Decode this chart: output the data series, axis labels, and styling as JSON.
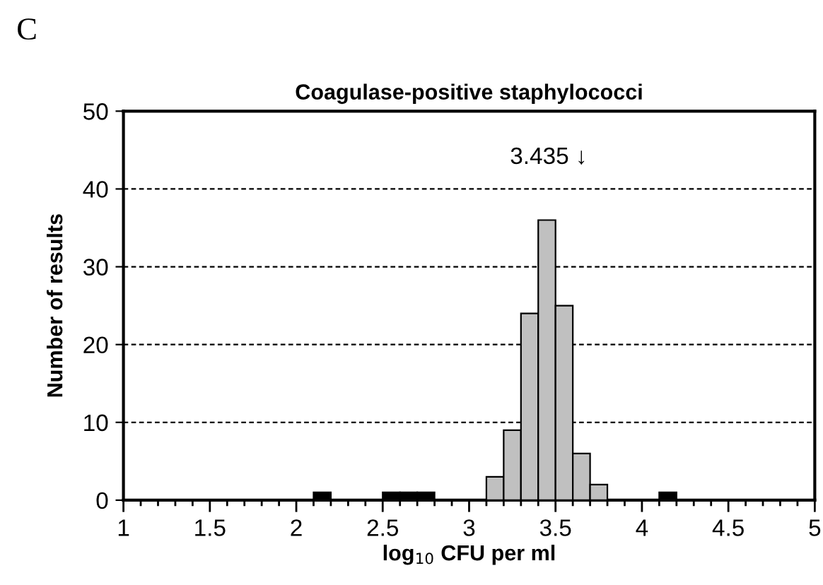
{
  "chart_data": {
    "type": "histogram",
    "title": "Coagulase-positive staphylococci",
    "xlabel": "log$_{10}$ CFU per ml",
    "ylabel": "Number of results",
    "bins": [
      2.1,
      2.2,
      2.3,
      2.4,
      2.5,
      2.6,
      2.7,
      2.8,
      2.9,
      3.0,
      3.1,
      3.2,
      3.3,
      3.4,
      3.5,
      3.6,
      3.7,
      3.8,
      3.9,
      4.0,
      4.1,
      4.2
    ],
    "values": [
      1,
      0,
      0,
      0,
      1,
      1,
      1,
      0,
      0,
      0,
      3,
      9,
      24,
      36,
      25,
      6,
      2,
      0,
      0,
      0,
      1
    ],
    "colors": [
      "#000000",
      "#000000",
      "#000000",
      "#000000",
      "#000000",
      "#000000",
      "#000000",
      "#000000",
      "#000000",
      "#000000",
      "#c0c0c0",
      "#c0c0c0",
      "#c0c0c0",
      "#c0c0c0",
      "#c0c0c0",
      "#c0c0c0",
      "#c0c0c0",
      "#000000",
      "#000000",
      "#000000",
      "#000000"
    ],
    "xlim": [
      1,
      5
    ],
    "xticks": [
      1,
      1.5,
      2,
      2.5,
      3,
      3.5,
      4,
      4.5,
      5
    ],
    "ylim": [
      0,
      50
    ],
    "yticks": [
      0,
      10,
      20,
      30,
      40,
      50
    ],
    "grid": "y",
    "annotations": [
      "C",
      "3.435 ↓"
    ]
  }
}
